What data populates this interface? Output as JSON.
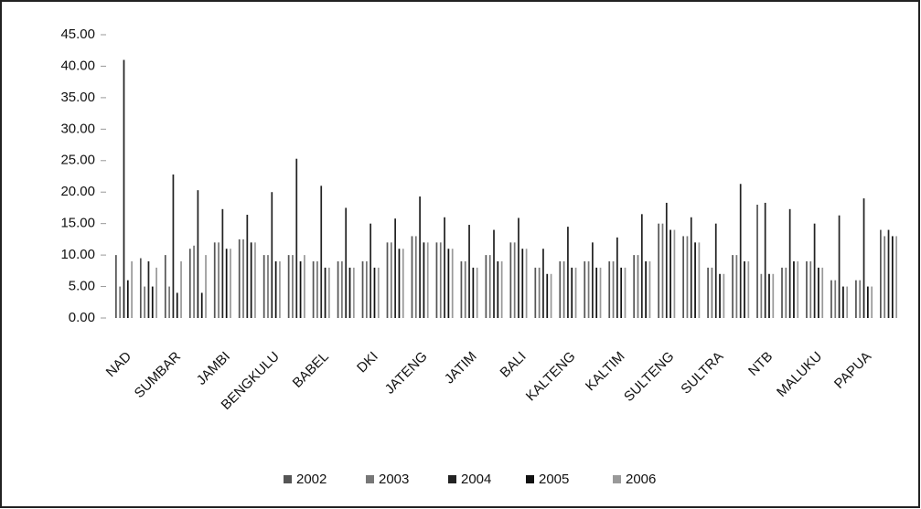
{
  "chart_data": {
    "type": "bar",
    "categories": [
      "NAD",
      null,
      "SUMBAR",
      null,
      "JAMBI",
      null,
      "BENGKULU",
      null,
      "BABEL",
      null,
      "DKI",
      null,
      "JATENG",
      null,
      "JATIM",
      null,
      "BALI",
      null,
      "KALTENG",
      null,
      "KALTIM",
      null,
      "SULTENG",
      null,
      "SULTRA",
      null,
      "NTB",
      null,
      "MALUKU",
      null,
      "PAPUA",
      null
    ],
    "series": [
      {
        "name": "2002",
        "color": "#555555",
        "values": [
          10,
          9.5,
          10,
          11,
          12,
          12.5,
          10,
          10,
          9,
          9,
          9,
          12,
          13,
          12,
          9,
          10,
          12,
          8,
          9,
          9,
          9,
          10,
          15,
          13,
          8,
          10,
          18,
          8,
          9,
          6,
          6,
          14
        ]
      },
      {
        "name": "2003",
        "color": "#777777",
        "values": [
          5,
          5,
          5,
          11.5,
          12,
          12.5,
          10,
          10,
          9,
          9,
          9,
          12,
          13,
          12,
          9,
          10,
          12,
          8,
          9,
          9,
          9,
          10,
          15,
          13,
          8,
          10,
          7,
          8,
          9,
          6,
          6,
          13
        ]
      },
      {
        "name": "2004",
        "color": "#222222",
        "values": [
          41,
          9,
          22.8,
          20.3,
          17.3,
          16.4,
          20,
          25.3,
          21,
          17.5,
          15,
          15.8,
          19.3,
          16,
          14.8,
          14,
          15.9,
          11,
          14.5,
          12,
          12.8,
          16.5,
          18.3,
          16,
          15,
          21.3,
          18.3,
          17.3,
          15,
          16.3,
          19,
          14
        ]
      },
      {
        "name": "2005",
        "color": "#111111",
        "values": [
          6,
          5,
          4,
          4,
          11,
          12,
          9,
          9,
          8,
          8,
          8,
          11,
          12,
          11,
          8,
          9,
          11,
          7,
          8,
          8,
          8,
          9,
          14,
          12,
          7,
          9,
          7,
          9,
          8,
          5,
          5,
          13
        ]
      },
      {
        "name": "2006",
        "color": "#999999",
        "values": [
          9,
          8,
          9,
          10,
          11,
          12,
          9,
          10,
          8,
          8,
          8,
          11,
          12,
          11,
          8,
          9,
          11,
          7,
          8,
          8,
          8,
          9,
          14,
          12,
          7,
          9,
          7,
          9,
          8,
          5,
          5,
          13
        ]
      }
    ],
    "ylim": [
      0,
      45
    ],
    "yticks": [
      {
        "value": 0,
        "label": "0.00"
      },
      {
        "value": 5,
        "label": "5.00"
      },
      {
        "value": 10,
        "label": "10.00"
      },
      {
        "value": 15,
        "label": "15.00"
      },
      {
        "value": 20,
        "label": "20.00"
      },
      {
        "value": 25,
        "label": "25.00"
      },
      {
        "value": 30,
        "label": "30.00"
      },
      {
        "value": 35,
        "label": "35.00"
      },
      {
        "value": 40,
        "label": "40.00"
      },
      {
        "value": 45,
        "label": "45.00"
      }
    ]
  }
}
